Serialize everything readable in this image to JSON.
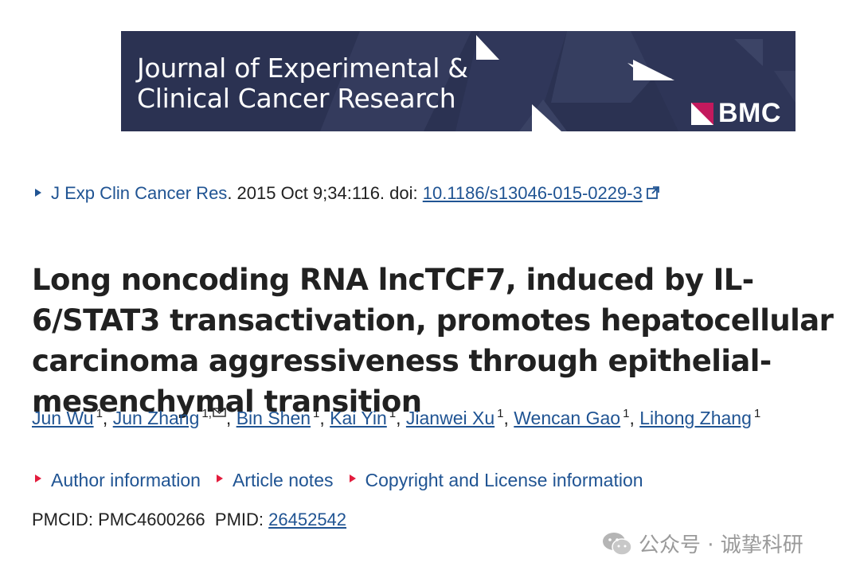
{
  "banner": {
    "journal_line1": "Journal of Experimental &",
    "journal_line2": "Clinical Cancer Research",
    "publisher": "BMC",
    "background_color": "#2b3252",
    "accent_color": "#c3195d"
  },
  "citation": {
    "journal": "J Exp Clin Cancer Res",
    "details": ". 2015 Oct 9;34:116. doi: ",
    "doi": "10.1186/s13046-015-0229-3",
    "external_link_icon": "external-link-icon"
  },
  "article": {
    "title": "Long noncoding RNA lncTCF7, induced by IL-6/STAT3 transactivation, promotes hepatocellular carcinoma aggressiveness through epithelial-mesenchymal transition"
  },
  "authors": [
    {
      "name": "Jun Wu",
      "aff": "1"
    },
    {
      "name": "Jun Zhang",
      "aff": "1,"
    },
    {
      "name": "Bin Shen",
      "aff": "1"
    },
    {
      "name": "Kai Yin",
      "aff": "1"
    },
    {
      "name": "Jianwei Xu",
      "aff": "1"
    },
    {
      "name": "Wencan Gao",
      "aff": "1"
    },
    {
      "name": "Lihong Zhang",
      "aff": "1"
    }
  ],
  "info_links": {
    "author_information": "Author information",
    "article_notes": "Article notes",
    "copyright": "Copyright and License information"
  },
  "ids": {
    "pmcid_label": "PMCID: ",
    "pmcid": "PMC4600266",
    "pmid_label": "PMID: ",
    "pmid": "26452542"
  },
  "watermark": {
    "text": "公众号 · 诚挚科研",
    "icon": "wechat-icon"
  },
  "colors": {
    "link": "#205493",
    "bullet_red": "#e31c3d",
    "text": "#212121"
  }
}
